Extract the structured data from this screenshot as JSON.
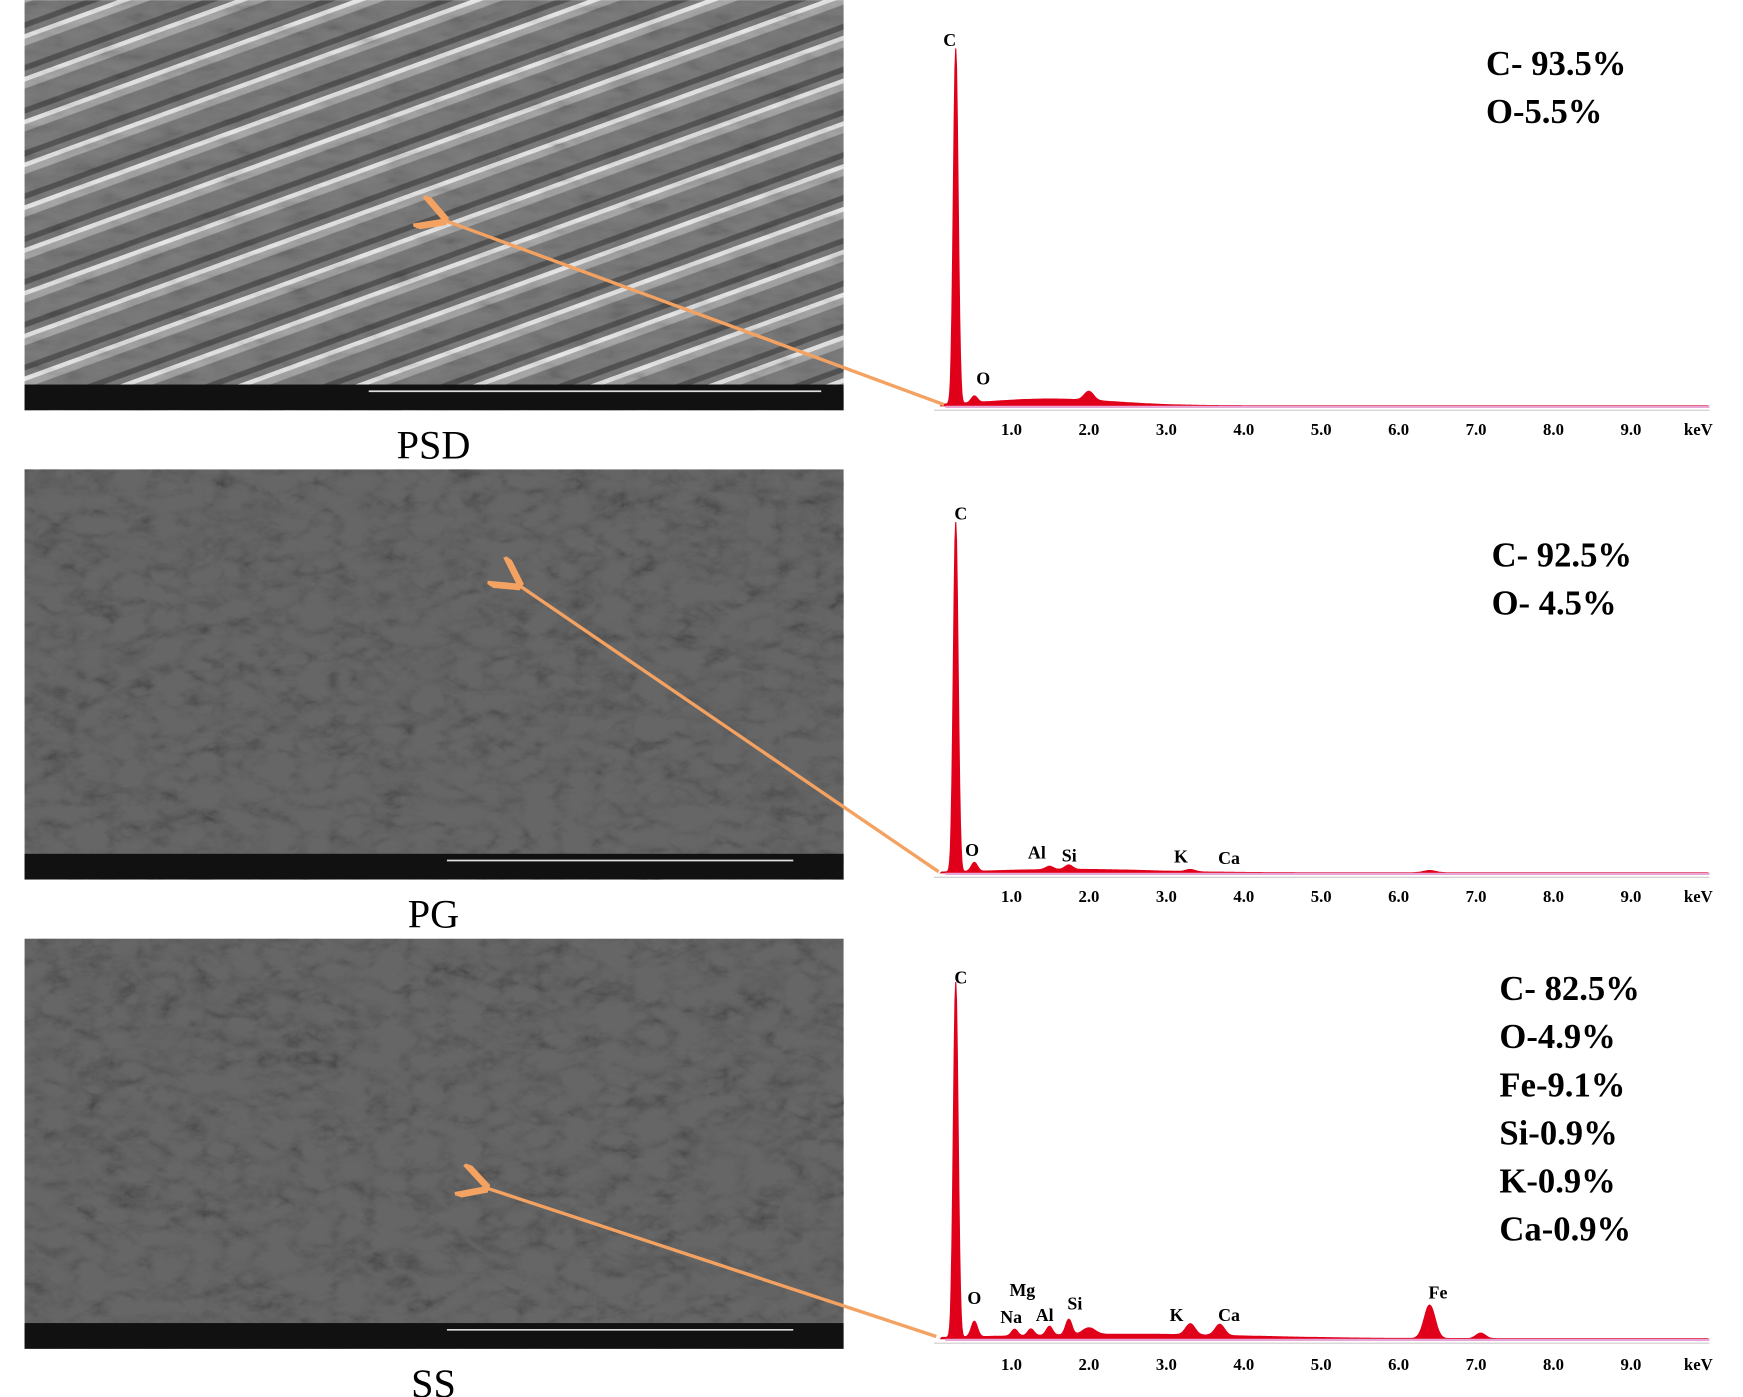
{
  "panels": [
    {
      "label": "PSD",
      "composition": [
        "C- 93.5%",
        "O-5.5%"
      ],
      "peaks": [
        "C",
        "O"
      ],
      "axis_ticks": [
        "1.0",
        "2.0",
        "3.0",
        "4.0",
        "5.0",
        "6.0",
        "7.0",
        "8.0",
        "9.0"
      ],
      "axis_unit": "keV"
    },
    {
      "label": "PG",
      "composition": [
        "C- 92.5%",
        "O- 4.5%"
      ],
      "peaks": [
        "C",
        "O",
        "Al",
        "Si",
        "K",
        "Ca"
      ],
      "axis_ticks": [
        "1.0",
        "2.0",
        "3.0",
        "4.0",
        "5.0",
        "6.0",
        "7.0",
        "8.0",
        "9.0"
      ],
      "axis_unit": "keV"
    },
    {
      "label": "SS",
      "composition": [
        "C- 82.5%",
        "O-4.9%",
        "Fe-9.1%",
        "Si-0.9%",
        "K-0.9%",
        "Ca-0.9%"
      ],
      "peaks": [
        "C",
        "O",
        "Mg",
        "Na",
        "Al",
        "Si",
        "K",
        "Ca",
        "Fe"
      ],
      "axis_ticks": [
        "1.0",
        "2.0",
        "3.0",
        "4.0",
        "5.0",
        "6.0",
        "7.0",
        "8.0",
        "9.0"
      ],
      "axis_unit": "keV"
    }
  ]
}
